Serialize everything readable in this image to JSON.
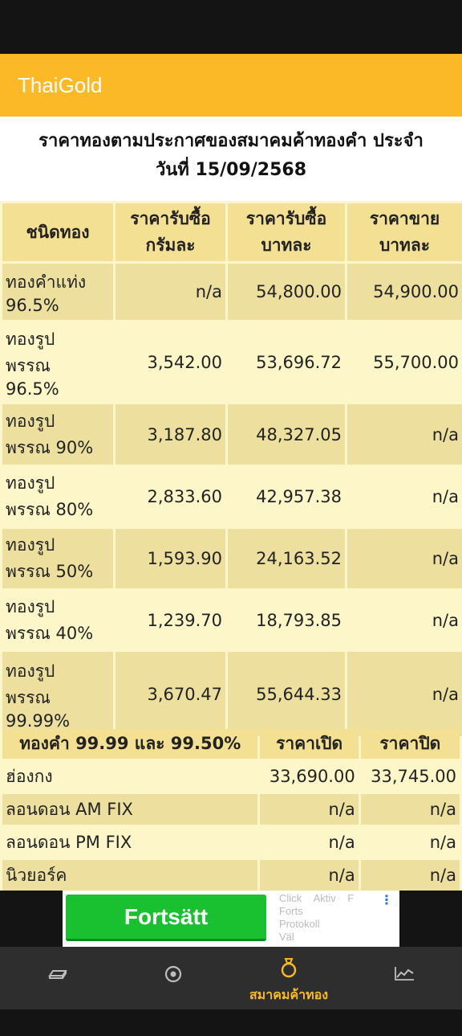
{
  "app": {
    "title": "ThaiGold"
  },
  "heading": {
    "line1": "ราคาทองตามประกาศของสมาคมค้าทองคำ ประจำ",
    "line2": "วันที่ 15/09/2568"
  },
  "gold_table": {
    "headers": [
      [
        "ชนิดทอง"
      ],
      [
        "ราคารับซื้อ",
        "กรัมละ"
      ],
      [
        "ราคารับซื้อ",
        "บาทละ"
      ],
      [
        "ราคาขาย",
        "บาทละ"
      ]
    ],
    "rows": [
      {
        "name": [
          "ทองคำแท่ง",
          "96.5%"
        ],
        "buy_gram": "n/a",
        "buy_baht": "54,800.00",
        "sell_baht": "54,900.00"
      },
      {
        "name": [
          "ทองรูป",
          "พรรณ",
          "96.5%"
        ],
        "buy_gram": "3,542.00",
        "buy_baht": "53,696.72",
        "sell_baht": "55,700.00"
      },
      {
        "name": [
          "ทองรูป",
          "พรรณ 90%"
        ],
        "buy_gram": "3,187.80",
        "buy_baht": "48,327.05",
        "sell_baht": "n/a"
      },
      {
        "name": [
          "ทองรูป",
          "พรรณ 80%"
        ],
        "buy_gram": "2,833.60",
        "buy_baht": "42,957.38",
        "sell_baht": "n/a"
      },
      {
        "name": [
          "ทองรูป",
          "พรรณ 50%"
        ],
        "buy_gram": "1,593.90",
        "buy_baht": "24,163.52",
        "sell_baht": "n/a"
      },
      {
        "name": [
          "ทองรูป",
          "พรรณ 40%"
        ],
        "buy_gram": "1,239.70",
        "buy_baht": "18,793.85",
        "sell_baht": "n/a"
      },
      {
        "name": [
          "ทองรูป",
          "พรรณ",
          "99.99%"
        ],
        "buy_gram": "3,670.47",
        "buy_baht": "55,644.33",
        "sell_baht": "n/a"
      }
    ]
  },
  "world_table": {
    "headers": [
      "ทองคำ 99.99 และ 99.50%",
      "ราคาเปิด",
      "ราคาปิด"
    ],
    "rows": [
      {
        "market": "ฮ่องกง",
        "open": "33,690.00",
        "close": "33,745.00"
      },
      {
        "market": "ลอนดอน AM FIX",
        "open": "n/a",
        "close": "n/a"
      },
      {
        "market": "ลอนดอน PM FIX",
        "open": "n/a",
        "close": "n/a"
      },
      {
        "market": "นิวยอร์ค",
        "open": "n/a",
        "close": "n/a"
      }
    ]
  },
  "ad": {
    "button_label": "Fortsätt",
    "small_text": [
      "Click",
      "Aktiv",
      "F",
      "Forts",
      "Protokoll",
      "Väl"
    ]
  },
  "nav": {
    "items": [
      {
        "icon": "gold-bar-icon",
        "label": ""
      },
      {
        "icon": "target-icon",
        "label": ""
      },
      {
        "icon": "ring-icon",
        "label": "สมาคมค้าทอง"
      },
      {
        "icon": "chart-line-icon",
        "label": ""
      }
    ],
    "active_index": 2
  },
  "colors": {
    "accent": "#fbb927",
    "table_bg": "#fdf6c8",
    "table_header": "#f4e093",
    "row_alt": "#ede09e",
    "ad_button": "#19c131"
  }
}
